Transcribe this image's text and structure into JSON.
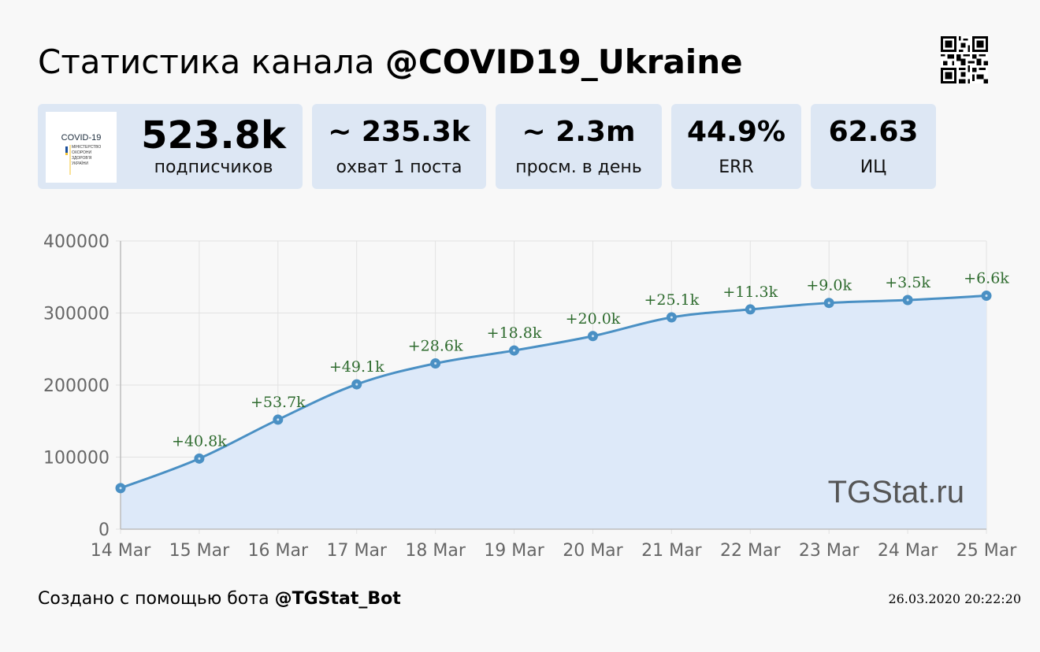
{
  "header": {
    "title_prefix": "Статистика канала",
    "channel": "@COVID19_Ukraine"
  },
  "logo": {
    "heading": "COVID-19",
    "lines": [
      "МІНІСТЕРСТВО",
      "ОХОРОНИ",
      "ЗДОРОВ'Я",
      "УКРАЇНИ"
    ]
  },
  "stats": [
    {
      "value": "523.8k",
      "label": "подписчиков"
    },
    {
      "value": "~ 235.3k",
      "label": "охват 1 поста"
    },
    {
      "value": "~ 2.3m",
      "label": "просм. в день"
    },
    {
      "value": "44.9%",
      "label": "ERR"
    },
    {
      "value": "62.63",
      "label": "ИЦ"
    }
  ],
  "chart_data": {
    "type": "area",
    "title": "",
    "xlabel": "",
    "ylabel": "",
    "ylim": [
      0,
      400000
    ],
    "yticks": [
      "0",
      "100000",
      "200000",
      "300000",
      "400000"
    ],
    "categories": [
      "14 Mar",
      "15 Mar",
      "16 Mar",
      "17 Mar",
      "18 Mar",
      "19 Mar",
      "20 Mar",
      "21 Mar",
      "22 Mar",
      "23 Mar",
      "24 Mar",
      "25 Mar"
    ],
    "values": [
      57000,
      98000,
      152000,
      201000,
      230000,
      248000,
      268000,
      294000,
      305000,
      314000,
      318000,
      324000
    ],
    "point_labels": [
      "",
      "+40.8k",
      "+53.7k",
      "+49.1k",
      "+28.6k",
      "+18.8k",
      "+20.0k",
      "+25.1k",
      "+11.3k",
      "+9.0k",
      "+3.5k",
      "+6.6k"
    ],
    "grid": true,
    "watermark": "TGStat.ru",
    "colors": {
      "line": "#4a90c4",
      "fill": "#dde9f9",
      "labels": "#2e6b2e",
      "grid": "#e2e2e2",
      "axis": "#bdbdbd",
      "ticks": "#666666"
    }
  },
  "footer": {
    "prefix": "Создано с помощью бота",
    "bot": "@TGStat_Bot",
    "timestamp": "26.03.2020 20:22:20"
  }
}
